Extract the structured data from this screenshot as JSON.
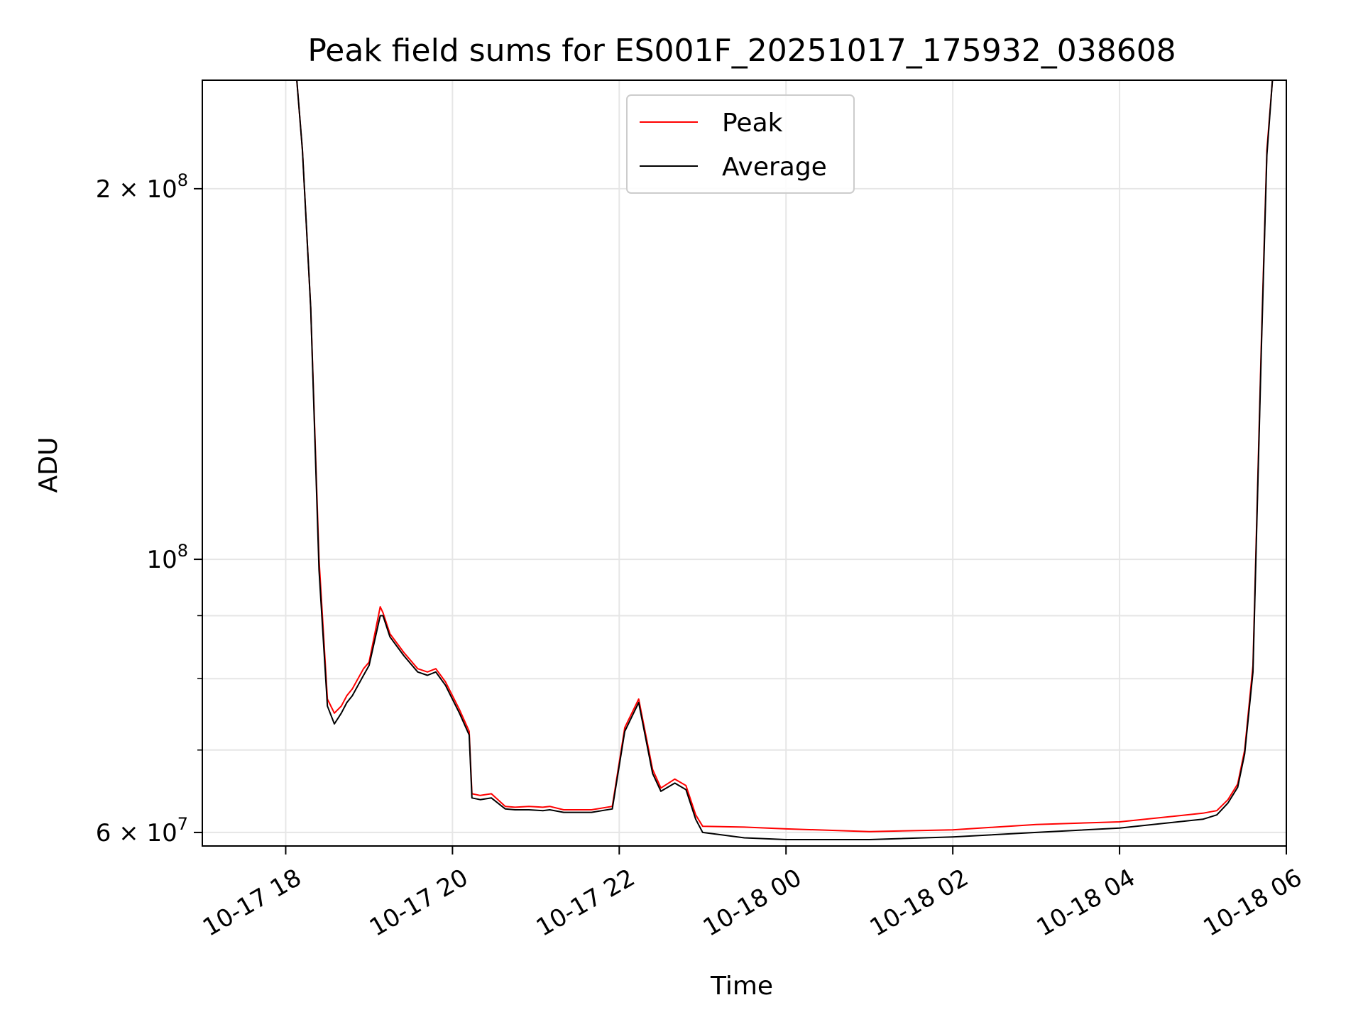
{
  "chart_data": {
    "type": "line",
    "title": "Peak field sums for ES001F_20251017_175932_038608",
    "xlabel": "Time",
    "ylabel": "ADU",
    "x_scale": "time",
    "y_scale": "log",
    "xlim": [
      "2025-10-17 17:00",
      "2025-10-18 06:00"
    ],
    "ylim": [
      58500000,
      245000000
    ],
    "x_ticks": [
      {
        "value": "2025-10-17 18:00",
        "label": "10-17 18"
      },
      {
        "value": "2025-10-17 20:00",
        "label": "10-17 20"
      },
      {
        "value": "2025-10-17 22:00",
        "label": "10-17 22"
      },
      {
        "value": "2025-10-18 00:00",
        "label": "10-18 00"
      },
      {
        "value": "2025-10-18 02:00",
        "label": "10-18 02"
      },
      {
        "value": "2025-10-18 04:00",
        "label": "10-18 04"
      },
      {
        "value": "2025-10-18 06:00",
        "label": "10-18 06"
      }
    ],
    "y_major_ticks": [
      {
        "value": 60000000,
        "base": "6 × 10",
        "exp": "7"
      },
      {
        "value": 100000000,
        "base": "10",
        "exp": "8"
      },
      {
        "value": 200000000,
        "base": "2 × 10",
        "exp": "8"
      }
    ],
    "y_minor_ticks": [
      70000000,
      80000000,
      90000000
    ],
    "grid": true,
    "legend": {
      "placement": "top-center"
    },
    "series": [
      {
        "name": "Peak",
        "color": "#ff0000",
        "x": [
          "2025-10-17 18:08",
          "2025-10-17 18:12",
          "2025-10-17 18:18",
          "2025-10-17 18:24",
          "2025-10-17 18:30",
          "2025-10-17 18:35",
          "2025-10-17 18:40",
          "2025-10-17 18:44",
          "2025-10-17 18:48",
          "2025-10-17 18:52",
          "2025-10-17 18:56",
          "2025-10-17 19:00",
          "2025-10-17 19:08",
          "2025-10-17 19:10",
          "2025-10-17 19:15",
          "2025-10-17 19:25",
          "2025-10-17 19:35",
          "2025-10-17 19:42",
          "2025-10-17 19:48",
          "2025-10-17 19:55",
          "2025-10-17 20:05",
          "2025-10-17 20:12",
          "2025-10-17 20:14",
          "2025-10-17 20:20",
          "2025-10-17 20:28",
          "2025-10-17 20:38",
          "2025-10-17 20:45",
          "2025-10-17 20:55",
          "2025-10-17 21:05",
          "2025-10-17 21:10",
          "2025-10-17 21:20",
          "2025-10-17 21:40",
          "2025-10-17 21:55",
          "2025-10-17 22:04",
          "2025-10-17 22:14",
          "2025-10-17 22:24",
          "2025-10-17 22:30",
          "2025-10-17 22:40",
          "2025-10-17 22:48",
          "2025-10-17 22:55",
          "2025-10-17 23:00",
          "2025-10-17 23:30",
          "2025-10-18 00:00",
          "2025-10-18 01:00",
          "2025-10-18 02:00",
          "2025-10-18 03:00",
          "2025-10-18 04:00",
          "2025-10-18 05:00",
          "2025-10-18 05:10",
          "2025-10-18 05:18",
          "2025-10-18 05:25",
          "2025-10-18 05:30",
          "2025-10-18 05:36",
          "2025-10-18 05:42",
          "2025-10-18 05:46",
          "2025-10-18 05:50"
        ],
        "values": [
          245000000,
          215000000,
          160000000,
          100000000,
          77000000,
          75000000,
          76000000,
          77500000,
          78500000,
          80000000,
          81500000,
          82500000,
          91500000,
          90500000,
          87000000,
          84000000,
          81500000,
          81000000,
          81500000,
          79500000,
          75500000,
          72500000,
          64500000,
          64300000,
          64500000,
          63000000,
          62900000,
          63000000,
          62900000,
          63000000,
          62600000,
          62600000,
          63000000,
          73000000,
          77000000,
          67500000,
          65200000,
          66300000,
          65500000,
          62000000,
          60700000,
          60600000,
          60400000,
          60100000,
          60300000,
          60900000,
          61200000,
          62200000,
          62500000,
          63800000,
          65700000,
          70000000,
          82000000,
          150000000,
          215000000,
          245000000
        ]
      },
      {
        "name": "Average",
        "color": "#000000",
        "x": [
          "2025-10-17 18:08",
          "2025-10-17 18:12",
          "2025-10-17 18:18",
          "2025-10-17 18:24",
          "2025-10-17 18:30",
          "2025-10-17 18:35",
          "2025-10-17 18:40",
          "2025-10-17 18:44",
          "2025-10-17 18:48",
          "2025-10-17 18:52",
          "2025-10-17 18:56",
          "2025-10-17 19:00",
          "2025-10-17 19:08",
          "2025-10-17 19:10",
          "2025-10-17 19:15",
          "2025-10-17 19:25",
          "2025-10-17 19:35",
          "2025-10-17 19:42",
          "2025-10-17 19:48",
          "2025-10-17 19:55",
          "2025-10-17 20:05",
          "2025-10-17 20:12",
          "2025-10-17 20:14",
          "2025-10-17 20:20",
          "2025-10-17 20:28",
          "2025-10-17 20:38",
          "2025-10-17 20:45",
          "2025-10-17 20:55",
          "2025-10-17 21:05",
          "2025-10-17 21:10",
          "2025-10-17 21:20",
          "2025-10-17 21:40",
          "2025-10-17 21:55",
          "2025-10-17 22:04",
          "2025-10-17 22:14",
          "2025-10-17 22:24",
          "2025-10-17 22:30",
          "2025-10-17 22:40",
          "2025-10-17 22:48",
          "2025-10-17 22:55",
          "2025-10-17 23:00",
          "2025-10-17 23:30",
          "2025-10-18 00:00",
          "2025-10-18 01:00",
          "2025-10-18 02:00",
          "2025-10-18 03:00",
          "2025-10-18 04:00",
          "2025-10-18 05:00",
          "2025-10-18 05:10",
          "2025-10-18 05:18",
          "2025-10-18 05:25",
          "2025-10-18 05:30",
          "2025-10-18 05:36",
          "2025-10-18 05:42",
          "2025-10-18 05:46",
          "2025-10-18 05:50"
        ],
        "values": [
          245000000,
          215000000,
          160000000,
          98000000,
          76000000,
          73500000,
          75000000,
          76500000,
          77500000,
          79000000,
          80500000,
          82000000,
          90000000,
          90000000,
          86500000,
          83500000,
          81000000,
          80500000,
          81000000,
          79000000,
          75000000,
          72000000,
          64000000,
          63800000,
          64000000,
          62700000,
          62600000,
          62600000,
          62500000,
          62600000,
          62300000,
          62300000,
          62700000,
          72500000,
          76500000,
          67000000,
          64800000,
          65800000,
          65000000,
          61500000,
          60000000,
          59400000,
          59200000,
          59200000,
          59500000,
          60000000,
          60500000,
          61500000,
          62000000,
          63400000,
          65300000,
          69500000,
          81000000,
          148000000,
          213000000,
          245000000
        ]
      }
    ]
  }
}
